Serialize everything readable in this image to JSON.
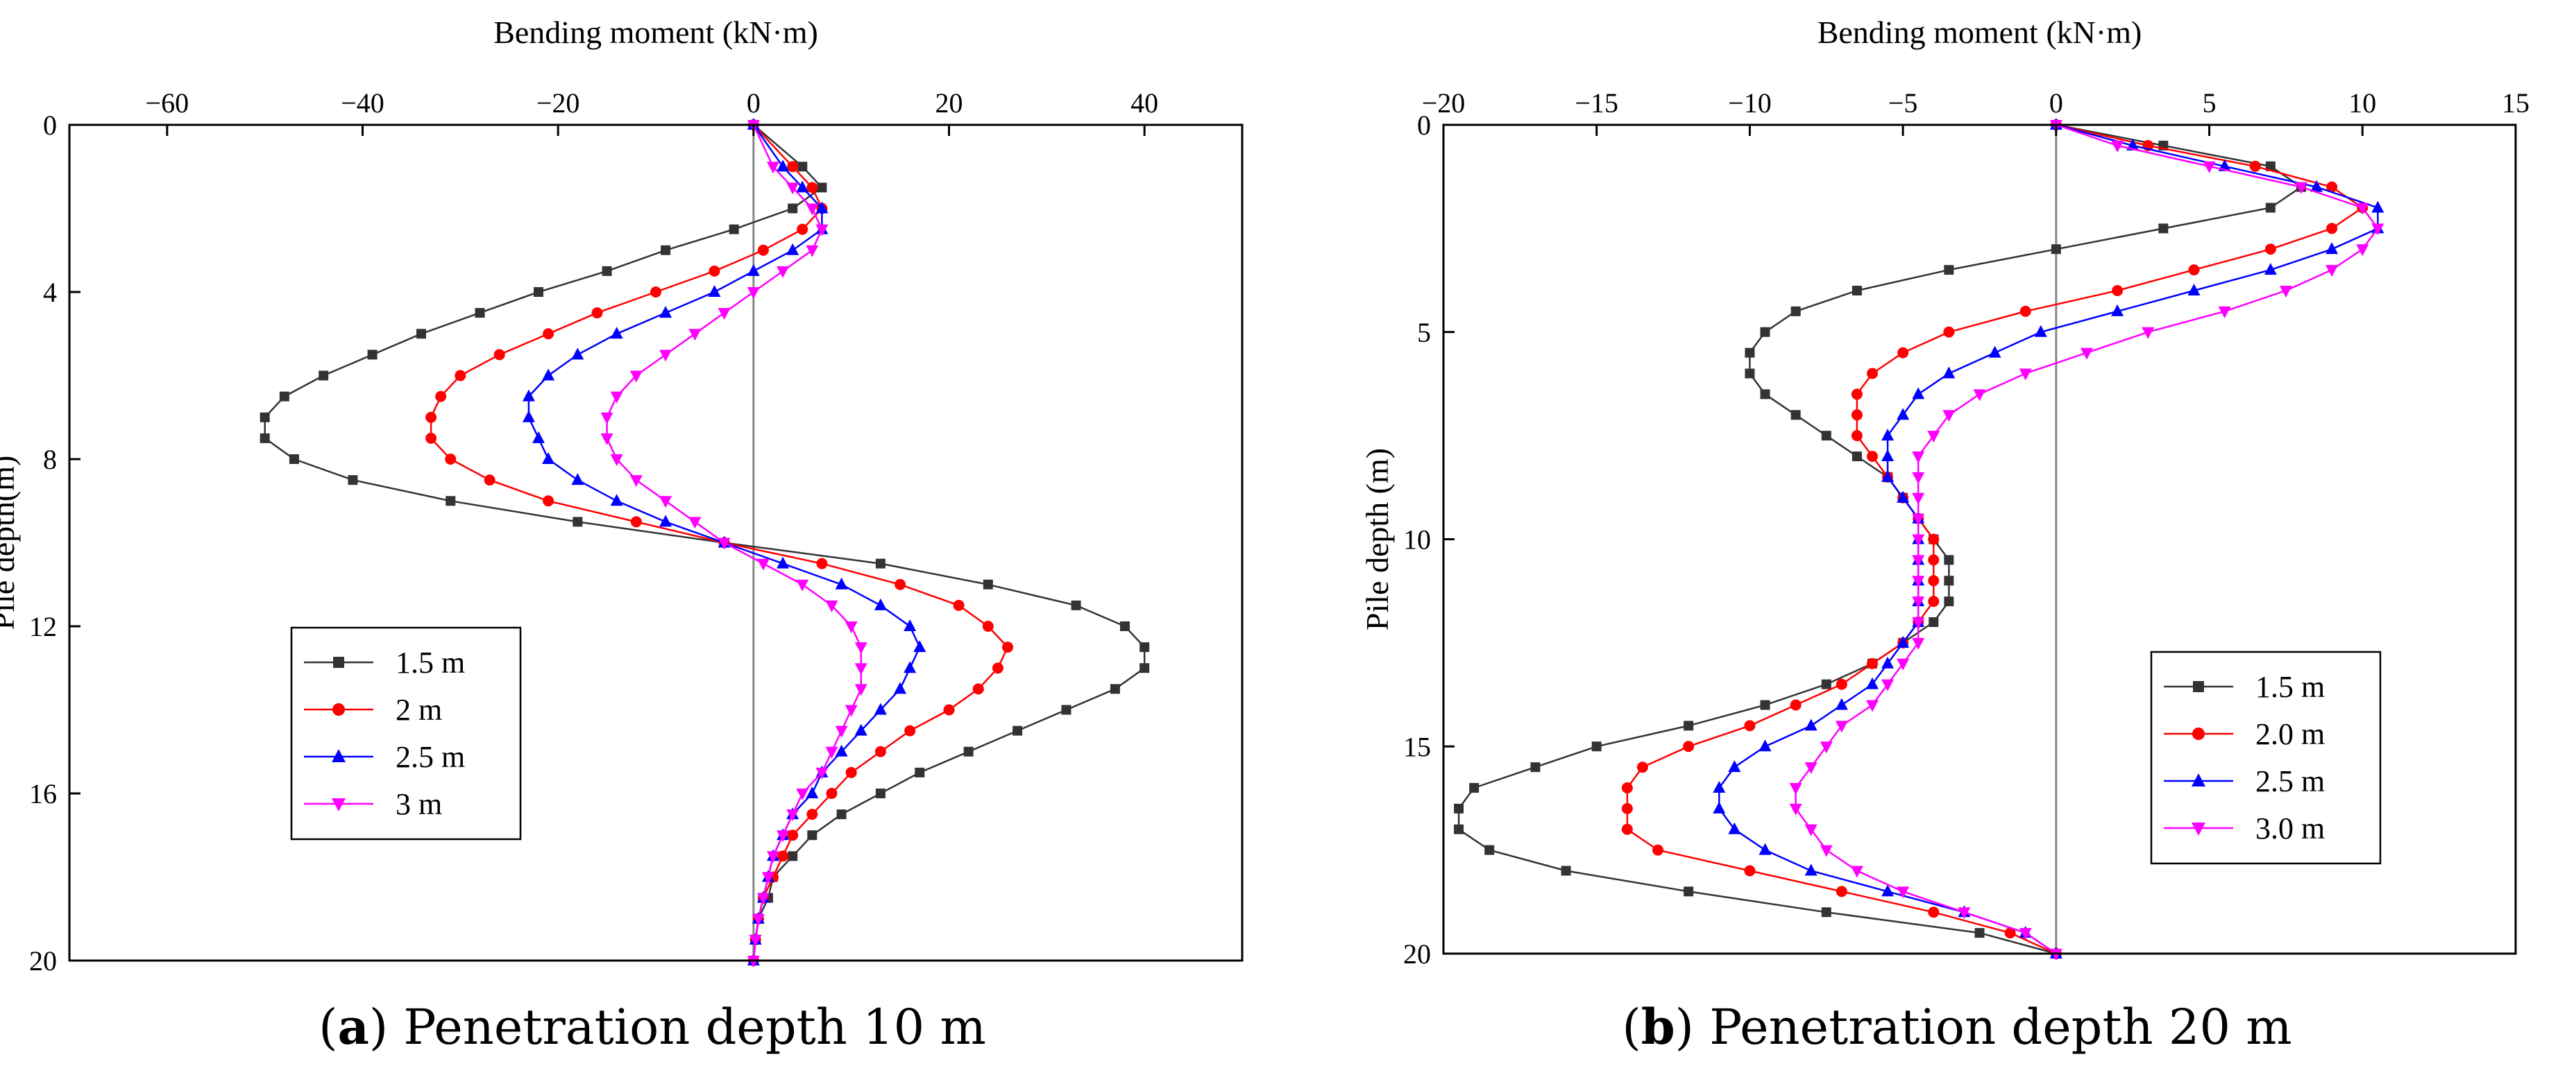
{
  "chart_data": [
    {
      "type": "line",
      "panel_id": "a",
      "caption_bold": "a",
      "caption_rest": "Penetration depth 10 m",
      "xlabel": "Bending moment (kN·m)",
      "ylabel": "Pile depth(m)",
      "xlim": [
        -70,
        50
      ],
      "ylim": [
        0,
        20
      ],
      "xticks": [
        -60,
        -40,
        -20,
        0,
        20,
        40
      ],
      "yticks": [
        0,
        4,
        8,
        12,
        16,
        20
      ],
      "xtick_labels": [
        "−60",
        "−40",
        "−20",
        "0",
        "20",
        "40"
      ],
      "ytick_labels": [
        "0",
        "4",
        "8",
        "12",
        "16",
        "20"
      ],
      "legend_position": "lower-left",
      "series": [
        {
          "name": "1.5 m",
          "color": "#333333",
          "marker": "square",
          "depth": [
            0,
            1,
            1.5,
            2,
            2.5,
            3,
            3.5,
            4,
            4.5,
            5,
            5.5,
            6,
            6.5,
            7,
            7.5,
            8,
            8.5,
            9,
            9.5,
            10,
            10.5,
            11,
            11.5,
            12,
            12.5,
            13,
            13.5,
            14,
            14.5,
            15,
            15.5,
            16,
            16.5,
            17,
            17.5,
            18,
            18.5,
            19,
            19.5,
            20
          ],
          "moment": [
            0,
            5,
            7,
            4,
            -2,
            -9,
            -15,
            -22,
            -28,
            -34,
            -39,
            -44,
            -48,
            -50,
            -50,
            -47,
            -41,
            -31,
            -18,
            -3,
            13,
            24,
            33,
            38,
            40,
            40,
            37,
            32,
            27,
            22,
            17,
            13,
            9,
            6,
            4,
            2,
            1.5,
            0.5,
            0.2,
            0
          ]
        },
        {
          "name": "2 m",
          "color": "#ff0000",
          "marker": "circle",
          "depth": [
            0,
            1,
            1.5,
            2,
            2.5,
            3,
            3.5,
            4,
            4.5,
            5,
            5.5,
            6,
            6.5,
            7,
            7.5,
            8,
            8.5,
            9,
            9.5,
            10,
            10.5,
            11,
            11.5,
            12,
            12.5,
            13,
            13.5,
            14,
            14.5,
            15,
            15.5,
            16,
            16.5,
            17,
            17.5,
            18,
            18.5,
            19,
            19.5,
            20
          ],
          "moment": [
            0,
            4,
            6,
            7,
            5,
            1,
            -4,
            -10,
            -16,
            -21,
            -26,
            -30,
            -32,
            -33,
            -33,
            -31,
            -27,
            -21,
            -12,
            -3,
            7,
            15,
            21,
            24,
            26,
            25,
            23,
            20,
            16,
            13,
            10,
            8,
            6,
            4,
            3,
            2,
            1,
            0.5,
            0.2,
            0
          ]
        },
        {
          "name": "2.5 m",
          "color": "#0000ff",
          "marker": "triangle-up",
          "depth": [
            0,
            1,
            1.5,
            2,
            2.5,
            3,
            3.5,
            4,
            4.5,
            5,
            5.5,
            6,
            6.5,
            7,
            7.5,
            8,
            8.5,
            9,
            9.5,
            10,
            10.5,
            11,
            11.5,
            12,
            12.5,
            13,
            13.5,
            14,
            14.5,
            15,
            15.5,
            16,
            16.5,
            17,
            17.5,
            18,
            18.5,
            19,
            19.5,
            20
          ],
          "moment": [
            0,
            3,
            5,
            7,
            7,
            4,
            0,
            -4,
            -9,
            -14,
            -18,
            -21,
            -23,
            -23,
            -22,
            -21,
            -18,
            -14,
            -9,
            -3,
            3,
            9,
            13,
            16,
            17,
            16,
            15,
            13,
            11,
            9,
            7,
            6,
            4,
            3,
            2,
            1.5,
            1,
            0.5,
            0.2,
            0
          ]
        },
        {
          "name": "3 m",
          "color": "#ff00ff",
          "marker": "triangle-down",
          "depth": [
            0,
            1,
            1.5,
            2,
            2.5,
            3,
            3.5,
            4,
            4.5,
            5,
            5.5,
            6,
            6.5,
            7,
            7.5,
            8,
            8.5,
            9,
            9.5,
            10,
            10.5,
            11,
            11.5,
            12,
            12.5,
            13,
            13.5,
            14,
            14.5,
            15,
            15.5,
            16,
            16.5,
            17,
            17.5,
            18,
            18.5,
            19,
            19.5,
            20
          ],
          "moment": [
            0,
            2,
            4,
            6,
            7,
            6,
            3,
            0,
            -3,
            -6,
            -9,
            -12,
            -14,
            -15,
            -15,
            -14,
            -12,
            -9,
            -6,
            -3,
            1,
            5,
            8,
            10,
            11,
            11,
            11,
            10,
            9,
            8,
            7,
            5,
            4,
            3,
            2,
            1.5,
            1,
            0.5,
            0.2,
            0
          ]
        }
      ]
    },
    {
      "type": "line",
      "panel_id": "b",
      "caption_bold": "b",
      "caption_rest": "Penetration depth 20 m",
      "xlabel": "Bending moment (kN·m)",
      "ylabel": "Pile depth (m)",
      "xlim": [
        -20,
        15
      ],
      "ylim": [
        0,
        20
      ],
      "xticks": [
        -20,
        -15,
        -10,
        -5,
        0,
        5,
        10,
        15
      ],
      "yticks": [
        0,
        5,
        10,
        15,
        20
      ],
      "xtick_labels": [
        "−20",
        "−15",
        "−10",
        "−5",
        "0",
        "5",
        "10",
        "15"
      ],
      "ytick_labels": [
        "0",
        "5",
        "10",
        "15",
        "20"
      ],
      "legend_position": "lower-right",
      "series": [
        {
          "name": "1.5 m",
          "color": "#333333",
          "marker": "square",
          "depth": [
            0,
            0.5,
            1,
            1.5,
            2,
            2.5,
            3,
            3.5,
            4,
            4.5,
            5,
            5.5,
            6,
            6.5,
            7,
            7.5,
            8,
            8.5,
            9,
            9.5,
            10,
            10.5,
            11,
            11.5,
            12,
            12.5,
            13,
            13.5,
            14,
            14.5,
            15,
            15.5,
            16,
            16.5,
            17,
            17.5,
            18,
            18.5,
            19,
            19.5,
            20
          ],
          "moment": [
            0,
            3.5,
            7,
            8,
            7,
            3.5,
            0,
            -3.5,
            -6.5,
            -8.5,
            -9.5,
            -10,
            -10,
            -9.5,
            -8.5,
            -7.5,
            -6.5,
            -5.5,
            -5,
            -4.5,
            -4,
            -3.5,
            -3.5,
            -3.5,
            -4,
            -5,
            -6,
            -7.5,
            -9.5,
            -12,
            -15,
            -17,
            -19,
            -19.5,
            -19.5,
            -18.5,
            -16,
            -12,
            -7.5,
            -2.5,
            0
          ]
        },
        {
          "name": "2.0 m",
          "color": "#ff0000",
          "marker": "circle",
          "depth": [
            0,
            0.5,
            1,
            1.5,
            2,
            2.5,
            3,
            3.5,
            4,
            4.5,
            5,
            5.5,
            6,
            6.5,
            7,
            7.5,
            8,
            8.5,
            9,
            9.5,
            10,
            10.5,
            11,
            11.5,
            12,
            12.5,
            13,
            13.5,
            14,
            14.5,
            15,
            15.5,
            16,
            16.5,
            17,
            17.5,
            18,
            18.5,
            19,
            19.5,
            20
          ],
          "moment": [
            0,
            3,
            6.5,
            9,
            10,
            9,
            7,
            4.5,
            2,
            -1,
            -3.5,
            -5,
            -6,
            -6.5,
            -6.5,
            -6.5,
            -6,
            -5.5,
            -5,
            -4.5,
            -4,
            -4,
            -4,
            -4,
            -4.5,
            -5,
            -6,
            -7,
            -8.5,
            -10,
            -12,
            -13.5,
            -14,
            -14,
            -14,
            -13,
            -10,
            -7,
            -4,
            -1.5,
            0
          ]
        },
        {
          "name": "2.5 m",
          "color": "#0000ff",
          "marker": "triangle-up",
          "depth": [
            0,
            0.5,
            1,
            1.5,
            2,
            2.5,
            3,
            3.5,
            4,
            4.5,
            5,
            5.5,
            6,
            6.5,
            7,
            7.5,
            8,
            8.5,
            9,
            9.5,
            10,
            10.5,
            11,
            11.5,
            12,
            12.5,
            13,
            13.5,
            14,
            14.5,
            15,
            15.5,
            16,
            16.5,
            17,
            17.5,
            18,
            18.5,
            19,
            19.5,
            20
          ],
          "moment": [
            0,
            2.5,
            5.5,
            8.5,
            10.5,
            10.5,
            9,
            7,
            4.5,
            2,
            -0.5,
            -2,
            -3.5,
            -4.5,
            -5,
            -5.5,
            -5.5,
            -5.5,
            -5,
            -4.5,
            -4.5,
            -4.5,
            -4.5,
            -4.5,
            -4.5,
            -5,
            -5.5,
            -6,
            -7,
            -8,
            -9.5,
            -10.5,
            -11,
            -11,
            -10.5,
            -9.5,
            -8,
            -5.5,
            -3,
            -1,
            0
          ]
        },
        {
          "name": "3.0 m",
          "color": "#ff00ff",
          "marker": "triangle-down",
          "depth": [
            0,
            0.5,
            1,
            1.5,
            2,
            2.5,
            3,
            3.5,
            4,
            4.5,
            5,
            5.5,
            6,
            6.5,
            7,
            7.5,
            8,
            8.5,
            9,
            9.5,
            10,
            10.5,
            11,
            11.5,
            12,
            12.5,
            13,
            13.5,
            14,
            14.5,
            15,
            15.5,
            16,
            16.5,
            17,
            17.5,
            18,
            18.5,
            19,
            19.5,
            20
          ],
          "moment": [
            0,
            2,
            5,
            8,
            10,
            10.5,
            10,
            9,
            7.5,
            5.5,
            3,
            1,
            -1,
            -2.5,
            -3.5,
            -4,
            -4.5,
            -4.5,
            -4.5,
            -4.5,
            -4.5,
            -4.5,
            -4.5,
            -4.5,
            -4.5,
            -4.5,
            -5,
            -5.5,
            -6,
            -7,
            -7.5,
            -8,
            -8.5,
            -8.5,
            -8,
            -7.5,
            -6.5,
            -5,
            -3,
            -1,
            0
          ]
        }
      ]
    }
  ]
}
